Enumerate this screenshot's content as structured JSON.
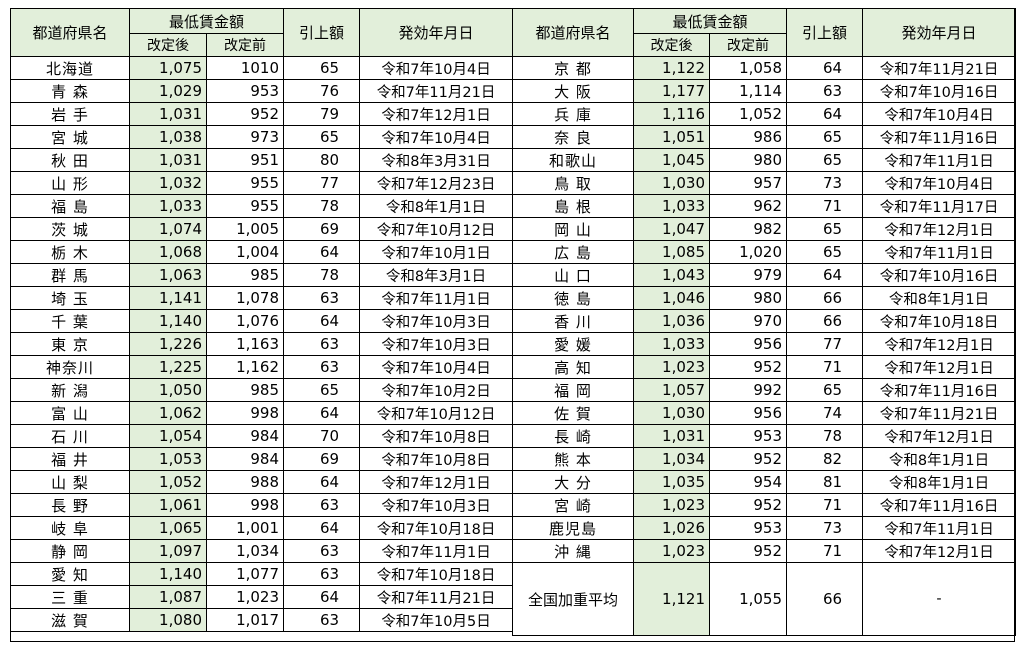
{
  "headers": {
    "prefecture": "都道府県名",
    "min_wage": "最低賃金額",
    "after": "改定後",
    "before": "改定前",
    "increase": "引上額",
    "effective_date": "発効年月日"
  },
  "left_rows": [
    {
      "pref": "北海道",
      "after": "1,075",
      "before": "1010",
      "inc": "65",
      "date": "令和7年10月4日"
    },
    {
      "pref": "青 森",
      "after": "1,029",
      "before": "953",
      "inc": "76",
      "date": "令和7年11月21日"
    },
    {
      "pref": "岩 手",
      "after": "1,031",
      "before": "952",
      "inc": "79",
      "date": "令和7年12月1日"
    },
    {
      "pref": "宮 城",
      "after": "1,038",
      "before": "973",
      "inc": "65",
      "date": "令和7年10月4日"
    },
    {
      "pref": "秋 田",
      "after": "1,031",
      "before": "951",
      "inc": "80",
      "date": "令和8年3月31日"
    },
    {
      "pref": "山 形",
      "after": "1,032",
      "before": "955",
      "inc": "77",
      "date": "令和7年12月23日"
    },
    {
      "pref": "福 島",
      "after": "1,033",
      "before": "955",
      "inc": "78",
      "date": "令和8年1月1日"
    },
    {
      "pref": "茨 城",
      "after": "1,074",
      "before": "1,005",
      "inc": "69",
      "date": "令和7年10月12日"
    },
    {
      "pref": "栃 木",
      "after": "1,068",
      "before": "1,004",
      "inc": "64",
      "date": "令和7年10月1日"
    },
    {
      "pref": "群 馬",
      "after": "1,063",
      "before": "985",
      "inc": "78",
      "date": "令和8年3月1日"
    },
    {
      "pref": "埼 玉",
      "after": "1,141",
      "before": "1,078",
      "inc": "63",
      "date": "令和7年11月1日"
    },
    {
      "pref": "千 葉",
      "after": "1,140",
      "before": "1,076",
      "inc": "64",
      "date": "令和7年10月3日"
    },
    {
      "pref": "東 京",
      "after": "1,226",
      "before": "1,163",
      "inc": "63",
      "date": "令和7年10月3日"
    },
    {
      "pref": "神奈川",
      "after": "1,225",
      "before": "1,162",
      "inc": "63",
      "date": "令和7年10月4日"
    },
    {
      "pref": "新 潟",
      "after": "1,050",
      "before": "985",
      "inc": "65",
      "date": "令和7年10月2日"
    },
    {
      "pref": "富 山",
      "after": "1,062",
      "before": "998",
      "inc": "64",
      "date": "令和7年10月12日"
    },
    {
      "pref": "石 川",
      "after": "1,054",
      "before": "984",
      "inc": "70",
      "date": "令和7年10月8日"
    },
    {
      "pref": "福 井",
      "after": "1,053",
      "before": "984",
      "inc": "69",
      "date": "令和7年10月8日"
    },
    {
      "pref": "山 梨",
      "after": "1,052",
      "before": "988",
      "inc": "64",
      "date": "令和7年12月1日"
    },
    {
      "pref": "長 野",
      "after": "1,061",
      "before": "998",
      "inc": "63",
      "date": "令和7年10月3日"
    },
    {
      "pref": "岐 阜",
      "after": "1,065",
      "before": "1,001",
      "inc": "64",
      "date": "令和7年10月18日"
    },
    {
      "pref": "静 岡",
      "after": "1,097",
      "before": "1,034",
      "inc": "63",
      "date": "令和7年11月1日"
    },
    {
      "pref": "愛 知",
      "after": "1,140",
      "before": "1,077",
      "inc": "63",
      "date": "令和7年10月18日"
    },
    {
      "pref": "三 重",
      "after": "1,087",
      "before": "1,023",
      "inc": "64",
      "date": "令和7年11月21日"
    },
    {
      "pref": "滋 賀",
      "after": "1,080",
      "before": "1,017",
      "inc": "63",
      "date": "令和7年10月5日"
    }
  ],
  "right_rows": [
    {
      "pref": "京 都",
      "after": "1,122",
      "before": "1,058",
      "inc": "64",
      "date": "令和7年11月21日"
    },
    {
      "pref": "大 阪",
      "after": "1,177",
      "before": "1,114",
      "inc": "63",
      "date": "令和7年10月16日"
    },
    {
      "pref": "兵 庫",
      "after": "1,116",
      "before": "1,052",
      "inc": "64",
      "date": "令和7年10月4日"
    },
    {
      "pref": "奈 良",
      "after": "1,051",
      "before": "986",
      "inc": "65",
      "date": "令和7年11月16日"
    },
    {
      "pref": "和歌山",
      "after": "1,045",
      "before": "980",
      "inc": "65",
      "date": "令和7年11月1日"
    },
    {
      "pref": "鳥 取",
      "after": "1,030",
      "before": "957",
      "inc": "73",
      "date": "令和7年10月4日"
    },
    {
      "pref": "島 根",
      "after": "1,033",
      "before": "962",
      "inc": "71",
      "date": "令和7年11月17日"
    },
    {
      "pref": "岡 山",
      "after": "1,047",
      "before": "982",
      "inc": "65",
      "date": "令和7年12月1日"
    },
    {
      "pref": "広 島",
      "after": "1,085",
      "before": "1,020",
      "inc": "65",
      "date": "令和7年11月1日"
    },
    {
      "pref": "山 口",
      "after": "1,043",
      "before": "979",
      "inc": "64",
      "date": "令和7年10月16日"
    },
    {
      "pref": "徳 島",
      "after": "1,046",
      "before": "980",
      "inc": "66",
      "date": "令和8年1月1日"
    },
    {
      "pref": "香 川",
      "after": "1,036",
      "before": "970",
      "inc": "66",
      "date": "令和7年10月18日"
    },
    {
      "pref": "愛 媛",
      "after": "1,033",
      "before": "956",
      "inc": "77",
      "date": "令和7年12月1日"
    },
    {
      "pref": "高 知",
      "after": "1,023",
      "before": "952",
      "inc": "71",
      "date": "令和7年12月1日"
    },
    {
      "pref": "福 岡",
      "after": "1,057",
      "before": "992",
      "inc": "65",
      "date": "令和7年11月16日"
    },
    {
      "pref": "佐 賀",
      "after": "1,030",
      "before": "956",
      "inc": "74",
      "date": "令和7年11月21日"
    },
    {
      "pref": "長 崎",
      "after": "1,031",
      "before": "953",
      "inc": "78",
      "date": "令和7年12月1日"
    },
    {
      "pref": "熊 本",
      "after": "1,034",
      "before": "952",
      "inc": "82",
      "date": "令和8年1月1日"
    },
    {
      "pref": "大 分",
      "after": "1,035",
      "before": "954",
      "inc": "81",
      "date": "令和8年1月1日"
    },
    {
      "pref": "宮 崎",
      "after": "1,023",
      "before": "952",
      "inc": "71",
      "date": "令和7年11月16日"
    },
    {
      "pref": "鹿児島",
      "after": "1,026",
      "before": "953",
      "inc": "73",
      "date": "令和7年11月1日"
    },
    {
      "pref": "沖 縄",
      "after": "1,023",
      "before": "952",
      "inc": "71",
      "date": "令和7年12月1日"
    }
  ],
  "national_average": {
    "label": "全国加重平均",
    "after": "1,121",
    "before": "1,055",
    "inc": "66",
    "date": "-"
  }
}
